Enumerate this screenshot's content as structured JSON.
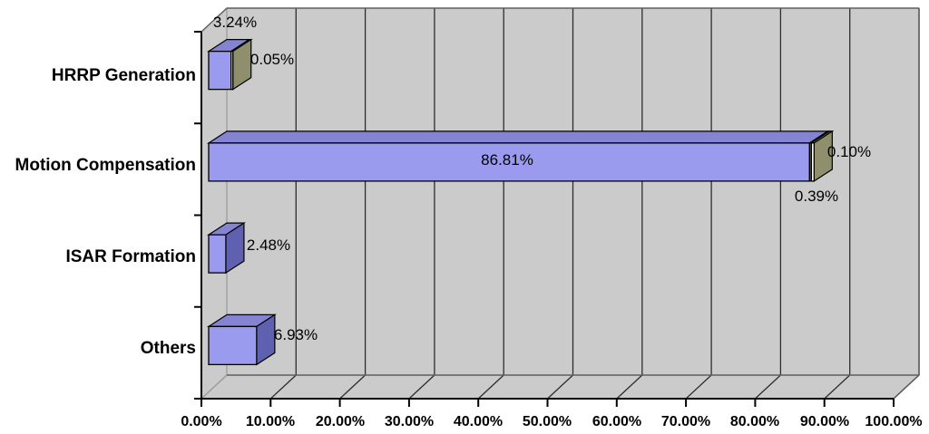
{
  "chart_data": {
    "type": "bar",
    "variant": "3d-horizontal-stacked",
    "title": "",
    "xlabel": "",
    "ylabel": "",
    "categories": [
      "HRRP Generation",
      "Motion Compensation",
      "ISAR Formation",
      "Others"
    ],
    "series": [
      {
        "name": "segment-1",
        "front": "#9A9AEE",
        "top": "#8484D2",
        "side": "#6060B0",
        "values": [
          3.24,
          86.81,
          2.48,
          6.93
        ]
      },
      {
        "name": "segment-2",
        "front": "#BA4E88",
        "top": "#5C2040",
        "side": "#8A3A63",
        "values": [
          0,
          0.1,
          0,
          0
        ]
      },
      {
        "name": "segment-3",
        "front": "#FFFFCC",
        "top": "#B5B58C",
        "side": "#8F8F6E",
        "values": [
          0.05,
          0.39,
          0,
          0
        ]
      }
    ],
    "data_labels": [
      [
        "3.24%",
        "0.05%"
      ],
      [
        "86.81%",
        "0.10%",
        "0.39%"
      ],
      [
        "2.48%"
      ],
      [
        "6.93%"
      ]
    ],
    "x_ticks": [
      "0.00%",
      "10.00%",
      "20.00%",
      "30.00%",
      "40.00%",
      "50.00%",
      "60.00%",
      "70.00%",
      "80.00%",
      "90.00%",
      "100.00%"
    ],
    "xlim": [
      0,
      100
    ],
    "grid": true,
    "legend": false,
    "colors": {
      "wall": "#CBCBCB",
      "outer_background": "#FFFFFF",
      "grid_line": "#2E2E2E",
      "zero_grid_line": "#9C9C9C",
      "frame": "#5F5F5F",
      "axis": "#000000",
      "bar_outline": "#000000",
      "text": "#000000"
    }
  }
}
